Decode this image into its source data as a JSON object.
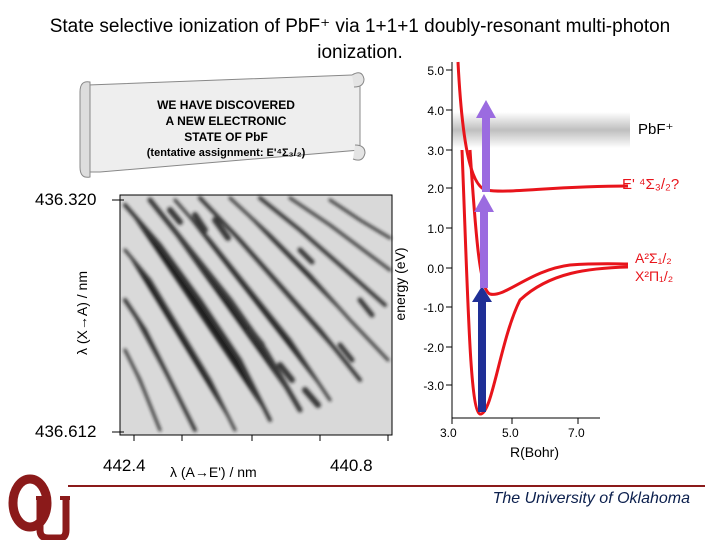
{
  "title_line1": "State selective ionization of PbF⁺ via 1+1+1 doubly-resonant multi-photon",
  "title_line2": "ionization.",
  "scroll": {
    "line1": "WE HAVE DISCOVERED",
    "line2": "A NEW ELECTRONIC",
    "line3": "STATE OF PbF",
    "line4": "(tentative assignment: E'⁴Σ₃/₂)"
  },
  "spectrum": {
    "y_top_label": "436.320",
    "y_bottom_label": "436.612",
    "x_left_label": "442.4",
    "x_right_label": "440.8",
    "x_axis_title": "λ (A→E') / nm",
    "y_axis_title": "λ (X→A) / nm"
  },
  "energy_plot": {
    "y_axis_title": "energy (eV)",
    "x_axis_title": "R(Bohr)",
    "y_ticks": [
      "5.0",
      "4.0",
      "3.0",
      "2.0",
      "1.0",
      "0.0",
      "-1.0",
      "-2.0",
      "-3.0"
    ],
    "x_ticks": [
      "3.0",
      "5.0",
      "7.0"
    ],
    "state_labels": {
      "ion": "PbF⁺",
      "e_prime": "E' ⁴Σ₃/₂?",
      "a_state": "A²Σ₁/₂",
      "x_state": "X²Π₁/₂"
    },
    "colors": {
      "curves": "#e8141b",
      "arrow_ir": "#1f2f96",
      "arrow_vis": "#9b6be0",
      "ion_band": "#c8c8c8"
    }
  },
  "footer": {
    "university": "The University of Oklahoma"
  },
  "colors": {
    "logo": "#8b1a1a",
    "rule": "#8b1a1a"
  }
}
